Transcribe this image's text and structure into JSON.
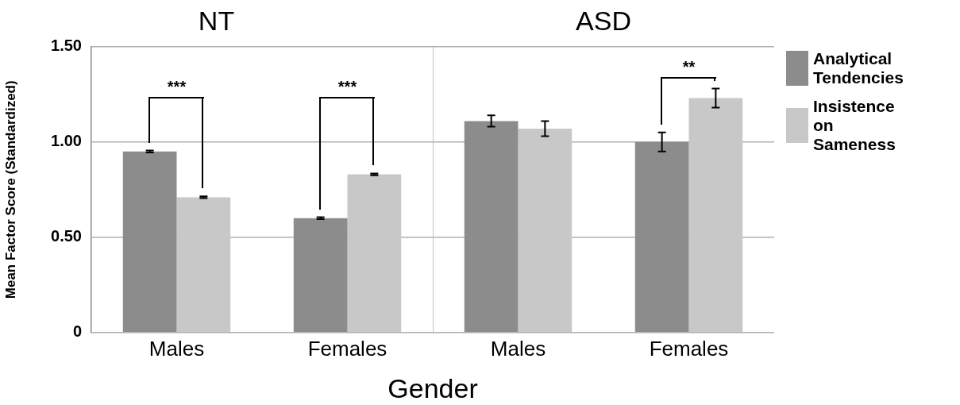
{
  "chart_data": [
    {
      "type": "bar",
      "title": "NT",
      "xlabel": "Gender",
      "ylabel": "Mean Factor Score (Standardized)",
      "categories": [
        "Males",
        "Females"
      ],
      "series": [
        {
          "name": "Analytical Tendencies",
          "color": "#8c8c8c",
          "values": [
            0.95,
            0.6
          ],
          "errors": [
            0.005,
            0.005
          ]
        },
        {
          "name": "Insistence on Sameness",
          "color": "#c8c8c8",
          "values": [
            0.71,
            0.83
          ],
          "errors": [
            0.005,
            0.005
          ]
        }
      ],
      "ylim": [
        0,
        1.5
      ],
      "yticks": [
        0,
        {
          "value": 0.5,
          "label": "0.50"
        },
        {
          "value": 1,
          "label": "1.00"
        },
        {
          "value": 1.5,
          "label": "1.50"
        }
      ],
      "grid": "y",
      "legend": "right",
      "annotations": [
        "***",
        "***"
      ]
    },
    {
      "type": "bar",
      "title": "ASD",
      "categories": [
        "Males",
        "Females"
      ],
      "series": [
        {
          "color": "#8c8c8c",
          "values": [
            1.11,
            1.0
          ],
          "errors": [
            0.03,
            0.05
          ]
        },
        {
          "color": "#c8c8c8",
          "values": [
            1.07,
            1.23
          ],
          "errors": [
            0.04,
            0.05
          ]
        }
      ],
      "ylim": [
        0,
        1.5
      ],
      "yticks": [
        {
          "value": 0,
          "label": null
        },
        {
          "value": 0.5,
          "label": null
        },
        {
          "value": 1,
          "label": null
        },
        {
          "value": 1.5,
          "label": null
        }
      ],
      "grid": "y",
      "tick_labels": "x",
      "annotations": [
        "**"
      ]
    }
  ]
}
